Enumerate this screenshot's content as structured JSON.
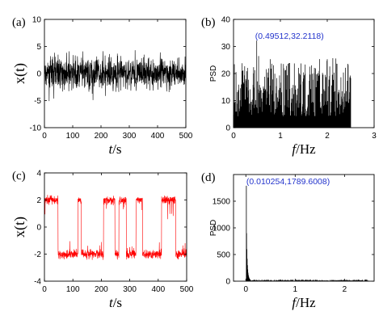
{
  "chart_data": [
    {
      "panel_label": "(a)",
      "type": "line",
      "style": "dense noisy time-series",
      "series_color": "#000000",
      "xlabel_italic": "t",
      "xlabel_rest": "/s",
      "ylabel": "x(t)",
      "xlim": [
        0,
        500
      ],
      "ylim": [
        -10,
        10
      ],
      "xticks": [
        "0",
        "100",
        "200",
        "300",
        "400",
        "500"
      ],
      "yticks": [
        "10",
        "5",
        "0",
        "-5",
        "-10"
      ],
      "signal": {
        "mean": 0,
        "typical_range": [
          -6,
          6
        ],
        "max_peak": 7,
        "min_trough": -7.5
      }
    },
    {
      "panel_label": "(b)",
      "type": "bar",
      "style": "dense power spectral density spikes",
      "series_color": "#000000",
      "xlabel_italic": "f",
      "xlabel_rest": "/Hz",
      "ylabel": "PSD",
      "xlim": [
        0,
        3
      ],
      "ylim": [
        0,
        40
      ],
      "xticks": [
        "0",
        "1",
        "2",
        "3"
      ],
      "yticks": [
        "40",
        "30",
        "20",
        "10",
        "0"
      ],
      "spectrum_extent": [
        0,
        2.5
      ],
      "annotation": {
        "text": "(0.49512,32.2118)",
        "x": 0.49512,
        "y": 32.2118,
        "color": "#2233cc"
      }
    },
    {
      "panel_label": "(c)",
      "type": "line",
      "style": "noisy bistable switching time-series",
      "series_color": "#ff0000",
      "xlabel_italic": "t",
      "xlabel_rest": "/s",
      "ylabel": "x(t)",
      "xlim": [
        0,
        500
      ],
      "ylim": [
        -4,
        4
      ],
      "xticks": [
        "0",
        "100",
        "200",
        "300",
        "400",
        "500"
      ],
      "yticks": [
        "4",
        "2",
        "0",
        "-2",
        "-4"
      ],
      "states": [
        2,
        -2
      ],
      "segments": [
        {
          "t0": 0,
          "t1": 48,
          "level": 2
        },
        {
          "t0": 48,
          "t1": 118,
          "level": -2
        },
        {
          "t0": 118,
          "t1": 130,
          "level": 2
        },
        {
          "t0": 130,
          "t1": 208,
          "level": -2
        },
        {
          "t0": 208,
          "t1": 248,
          "level": 2
        },
        {
          "t0": 248,
          "t1": 262,
          "level": -2
        },
        {
          "t0": 262,
          "t1": 288,
          "level": 2
        },
        {
          "t0": 288,
          "t1": 322,
          "level": -2
        },
        {
          "t0": 322,
          "t1": 345,
          "level": 2
        },
        {
          "t0": 345,
          "t1": 412,
          "level": -2
        },
        {
          "t0": 412,
          "t1": 462,
          "level": 2
        },
        {
          "t0": 462,
          "t1": 500,
          "level": -2
        }
      ]
    },
    {
      "panel_label": "(d)",
      "type": "bar",
      "style": "power spectral density with single sharp low-frequency peak",
      "series_color": "#000000",
      "xlabel_italic": "f",
      "xlabel_rest": "/Hz",
      "ylabel": "PSD",
      "xlim": [
        -0.25,
        2.6
      ],
      "ylim": [
        0,
        2000
      ],
      "xticks": [
        "0",
        "1",
        "2"
      ],
      "yticks": [
        "1500",
        "1000",
        "500",
        "0"
      ],
      "annotation": {
        "text": "(0.010254,1789.6008)",
        "x": 0.010254,
        "y": 1789.6008,
        "color": "#2233cc"
      }
    }
  ]
}
